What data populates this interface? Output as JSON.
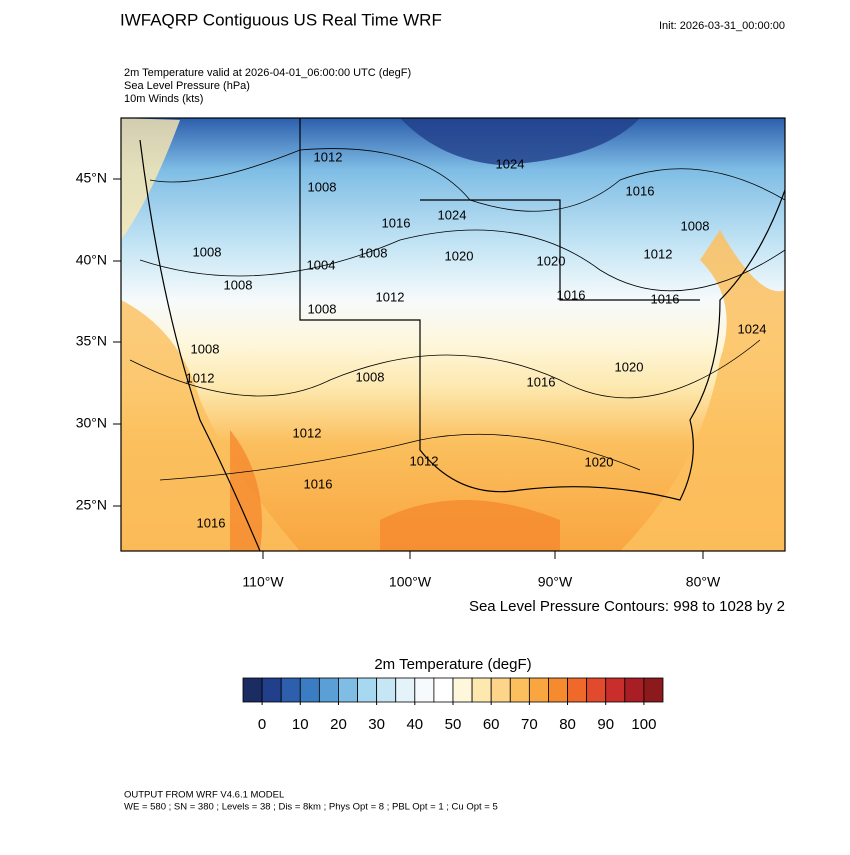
{
  "header": {
    "title": "IWFAQRP Contiguous US Real Time WRF",
    "init": "Init: 2026-03-31_00:00:00",
    "subtitle": [
      "2m Temperature valid at 2026-04-01_06:00:00 UTC   (degF)",
      "Sea Level Pressure   (hPa)",
      "10m Winds   (kts)"
    ]
  },
  "map": {
    "lat_labels": [
      "45°N",
      "40°N",
      "35°N",
      "30°N",
      "25°N"
    ],
    "lon_labels": [
      "110°W",
      "100°W",
      "90°W",
      "80°W"
    ],
    "isobar_labels": [
      1012,
      1008,
      1024,
      1016,
      1024,
      1016,
      1008,
      1008,
      1004,
      1008,
      1020,
      1020,
      1012,
      1008,
      1012,
      1016,
      1016,
      1008,
      1024,
      1008,
      1020,
      1012,
      1008,
      1016,
      1012,
      1012,
      1020,
      1016,
      1016
    ],
    "contour_note": "Sea Level Pressure Contours: 998 to 1028 by 2"
  },
  "colorbar": {
    "title": "2m Temperature  (degF)",
    "ticks": [
      0,
      10,
      20,
      30,
      40,
      50,
      60,
      70,
      80,
      90,
      100
    ],
    "colors": [
      "#1b2c62",
      "#213f8a",
      "#2d5fad",
      "#3b7dc2",
      "#5aa0d6",
      "#7fbde5",
      "#a6d8f0",
      "#c6e6f5",
      "#e4f2f9",
      "#f6fafc",
      "#ffffff",
      "#fef7dc",
      "#fde9b0",
      "#fcd48a",
      "#fbbf5e",
      "#f9a640",
      "#f58a2e",
      "#ef6a2a",
      "#e14a2c",
      "#c92d2c",
      "#a91d25",
      "#8c1a1c"
    ]
  },
  "footer": [
    "OUTPUT FROM WRF V4.6.1 MODEL",
    "WE = 580 ; SN = 380 ; Levels = 38 ; Dis = 8km ; Phys Opt = 8 ; PBL Opt = 1 ; Cu Opt = 5"
  ]
}
